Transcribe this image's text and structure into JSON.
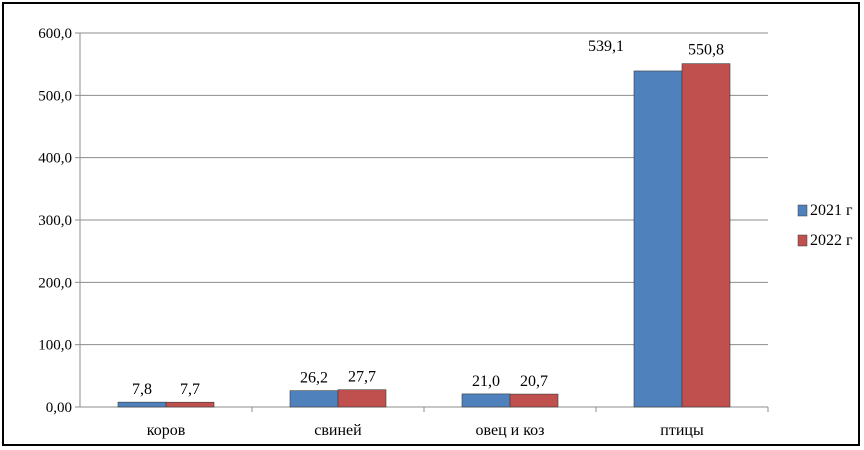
{
  "chart_data": {
    "type": "bar",
    "categories": [
      "коров",
      "свиней",
      "овец и коз",
      "птицы"
    ],
    "series": [
      {
        "name": "2021 г",
        "values": [
          7.8,
          26.2,
          21.0,
          539.1
        ],
        "labels": [
          "7,8",
          "26,2",
          "21,0",
          "539,1"
        ],
        "color": "#4F81BD"
      },
      {
        "name": "2022 г",
        "values": [
          7.7,
          27.7,
          20.7,
          550.8
        ],
        "labels": [
          "7,7",
          "27,7",
          "20,7",
          "550,8"
        ],
        "color": "#C0504D"
      }
    ],
    "ylim": [
      0,
      600
    ],
    "yticks": [
      0,
      100,
      200,
      300,
      400,
      500,
      600
    ],
    "ytick_labels": [
      "0,00",
      "100,0",
      "200,0",
      "300,0",
      "400,0",
      "500,0",
      "600,0"
    ],
    "grid": true,
    "legend_position": "right"
  }
}
